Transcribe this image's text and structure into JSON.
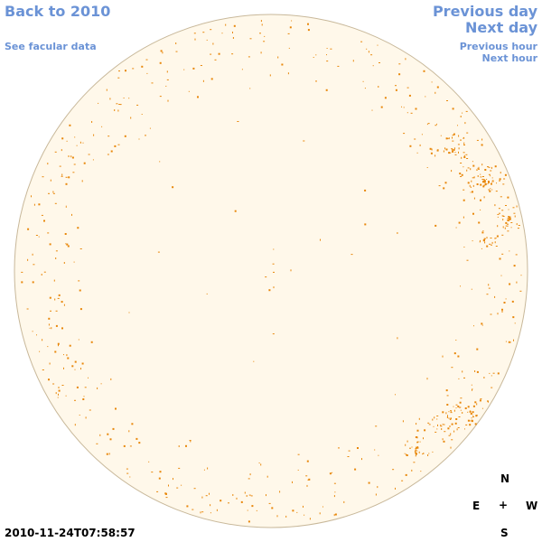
{
  "nav": {
    "back": "Back to 2010",
    "facular": "See facular data",
    "previous_day": "Previous day",
    "next_day": "Next day",
    "previous_hour": "Previous hour",
    "next_hour": "Next hour"
  },
  "image": {
    "timestamp": "2010-11-24T07:58:57",
    "disk_fill": "#fff8ea",
    "disk_border": "#c8b89a",
    "facula_color": "#e8870a"
  },
  "compass": {
    "north": "N",
    "east": "E",
    "west": "W",
    "south": "S",
    "center": "+"
  }
}
